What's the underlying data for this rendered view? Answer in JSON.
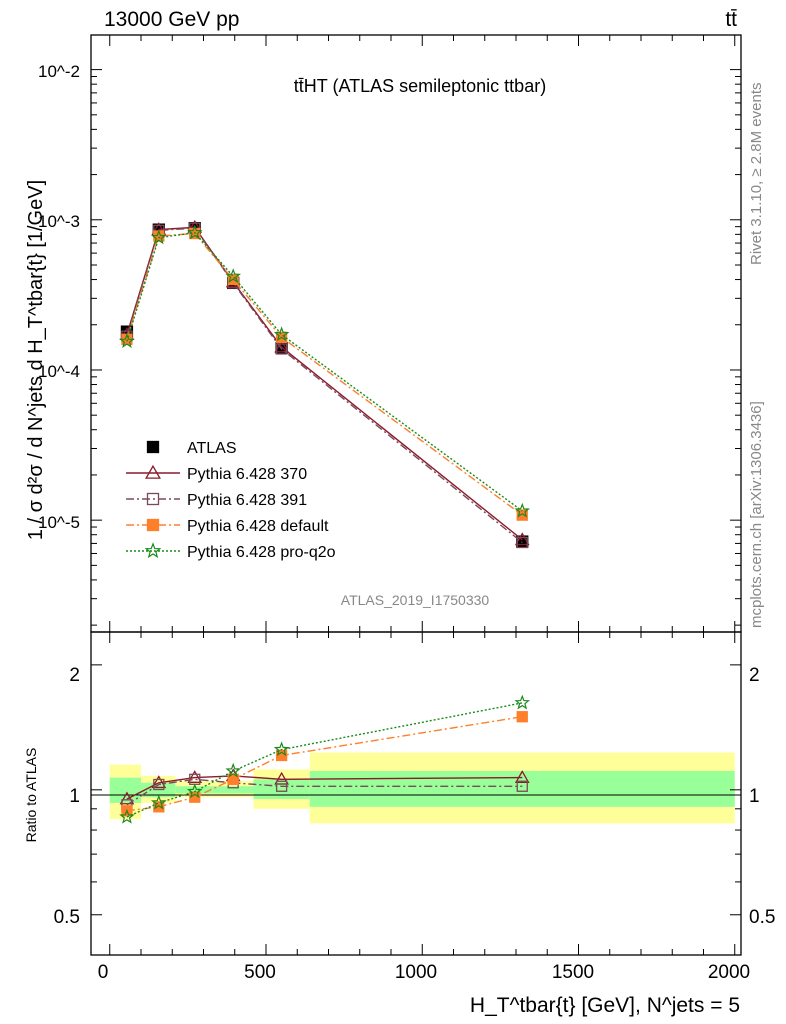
{
  "header": {
    "left": "13000 GeV pp",
    "right": "tt̄"
  },
  "side_text": {
    "top": "Rivet 3.1.10, ≥ 2.8M events",
    "bottom": "mcplots.cern.ch [arXiv:1306.3436]"
  },
  "chart_data": [
    {
      "type": "line",
      "title": "tt̄HT (ATLAS semileptonic ttbar)",
      "ylabel": "1 / σ d²σ / d N^jets d H_T^tbar{t} [1/GeV]",
      "yscale": "log",
      "ylim": [
        1.8e-06,
        0.017
      ],
      "xlim": [
        -60,
        2020
      ],
      "ytick_labels": [
        "10^-2",
        "10^-3",
        "10^-4",
        "10^-5"
      ],
      "watermark": "ATLAS_2019_I1750330",
      "x": [
        55,
        157,
        272,
        395,
        550,
        1320
      ],
      "series": [
        {
          "name": "ATLAS",
          "values": [
            0.00018,
            0.00086,
            0.00088,
            0.00038,
            0.00014,
            7.2e-06
          ],
          "color": "#000000",
          "marker": "square"
        },
        {
          "name": "Pythia 6.428 370",
          "values": [
            0.000172,
            0.00086,
            0.00089,
            0.000385,
            0.000142,
            7.4e-06
          ],
          "color": "#8b1a2b",
          "marker": "triangle-open"
        },
        {
          "name": "Pythia 6.428 391",
          "values": [
            0.000168,
            0.00085,
            0.00088,
            0.00038,
            0.000138,
            7.1e-06
          ],
          "color": "#7a4a5a",
          "marker": "square-open"
        },
        {
          "name": "Pythia 6.428 default",
          "values": [
            0.00016,
            0.00078,
            0.00081,
            0.0004,
            0.000165,
            1.08e-05
          ],
          "color": "#ff7f2a",
          "marker": "square"
        },
        {
          "name": "Pythia 6.428 pro-q2o",
          "values": [
            0.000155,
            0.00076,
            0.00082,
            0.00042,
            0.000172,
            1.15e-05
          ],
          "color": "#1a8a1a",
          "marker": "star"
        }
      ]
    },
    {
      "type": "line",
      "ylabel": "Ratio to ATLAS",
      "xlabel": "H_T^tbar{t} [GeV], N^jets = 5",
      "yscale": "log",
      "ylim": [
        0.4,
        2.4
      ],
      "xlim": [
        -60,
        2020
      ],
      "x_tick_labels": [
        "0",
        "500",
        "1000",
        "1500",
        "2000"
      ],
      "y_tick_labels": [
        "2",
        "1",
        "0.5"
      ],
      "bands": [
        {
          "x_range": [
            0,
            100
          ],
          "inner": [
            0.93,
            1.07
          ],
          "outer": [
            0.85,
            1.15
          ]
        },
        {
          "x_range": [
            100,
            210
          ],
          "inner": [
            0.96,
            1.04
          ],
          "outer": [
            0.93,
            1.08
          ]
        },
        {
          "x_range": [
            210,
            330
          ],
          "inner": [
            0.98,
            1.02
          ],
          "outer": [
            0.96,
            1.05
          ]
        },
        {
          "x_range": [
            330,
            460
          ],
          "inner": [
            0.98,
            1.02
          ],
          "outer": [
            0.96,
            1.05
          ]
        },
        {
          "x_range": [
            460,
            640
          ],
          "inner": [
            0.95,
            1.06
          ],
          "outer": [
            0.9,
            1.12
          ]
        },
        {
          "x_range": [
            640,
            2000
          ],
          "inner": [
            0.91,
            1.11
          ],
          "outer": [
            0.83,
            1.23
          ]
        }
      ],
      "x": [
        55,
        157,
        272,
        395,
        550,
        1320
      ],
      "series": [
        {
          "name": "Pythia 6.428 370",
          "values": [
            0.95,
            1.04,
            1.07,
            1.08,
            1.06,
            1.07
          ]
        },
        {
          "name": "Pythia 6.428 391",
          "values": [
            0.92,
            1.03,
            1.06,
            1.04,
            1.02,
            1.02
          ]
        },
        {
          "name": "Pythia 6.428 default",
          "values": [
            0.89,
            0.91,
            0.96,
            1.06,
            1.21,
            1.5
          ]
        },
        {
          "name": "Pythia 6.428 pro-q2o",
          "values": [
            0.86,
            0.93,
            0.99,
            1.11,
            1.25,
            1.62
          ]
        }
      ]
    }
  ]
}
